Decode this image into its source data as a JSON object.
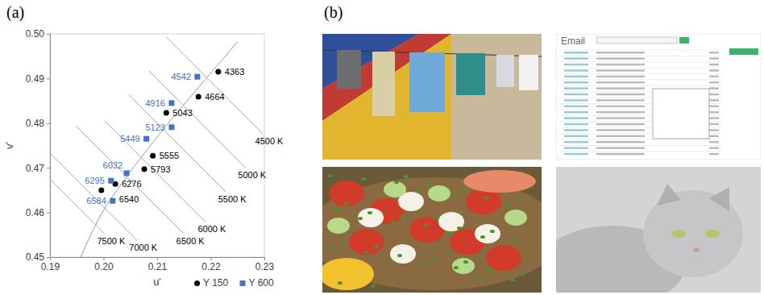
{
  "panel_labels": [
    "(a)",
    "(b)"
  ],
  "chart_data": {
    "type": "scatter",
    "x_label": "u'",
    "y_label": "v'",
    "xlim": [
      0.19,
      0.23
    ],
    "xticks": [
      0.19,
      {
        "value": 0.2,
        "label": "0.20"
      },
      0.21,
      0.22,
      0.23
    ],
    "ylim": [
      0.45,
      0.5
    ],
    "yticks": [
      0.45,
      0.46,
      0.47,
      0.48,
      0.49,
      {
        "value": 0.5,
        "label": "0.50"
      }
    ],
    "grid": false,
    "legend": "bottom-right",
    "series": [
      {
        "name": "Y 150",
        "color": "#000000",
        "marker": "circle",
        "x": [
          0.2214,
          0.2177,
          0.2117,
          0.2092,
          0.2076,
          0.2022,
          0.1996
        ],
        "values": [
          0.4915,
          0.4859,
          0.4823,
          0.4727,
          0.4697,
          0.4664,
          0.465
        ],
        "labels": [
          4363,
          4664,
          5043,
          5555,
          5793,
          6276,
          6540
        ]
      },
      {
        "name": "Y 600",
        "color": "#4472c4",
        "marker": "square",
        "x": [
          0.2175,
          0.2127,
          0.2127,
          0.208,
          0.2043,
          0.2014,
          0.2017
        ],
        "values": [
          0.4904,
          0.4845,
          0.4791,
          0.4765,
          0.4688,
          0.4671,
          0.4626
        ],
        "labels": [
          4542,
          4916,
          5123,
          5449,
          6032,
          6295,
          6584
        ]
      }
    ],
    "isotherms": [
      {
        "label": "4500 K",
        "x": [
          0.2117,
          0.2297
        ],
        "y": [
          0.4993,
          0.4776
        ]
      },
      {
        "label": "5000 K",
        "x": [
          0.2085,
          0.2265
        ],
        "y": [
          0.4917,
          0.47
        ]
      },
      {
        "label": "5500 K",
        "x": [
          0.2047,
          0.2228
        ],
        "y": [
          0.4863,
          0.4646
        ]
      },
      {
        "label": "6000 K",
        "x": [
          0.2002,
          0.219
        ],
        "y": [
          0.4805,
          0.4579
        ]
      },
      {
        "label": "6500 K",
        "x": [
          0.195,
          0.215
        ],
        "y": [
          0.4792,
          0.4552
        ]
      },
      {
        "label": "7000 K",
        "x": [
          0.19,
          0.2062
        ],
        "y": [
          0.4733,
          0.4538
        ]
      },
      {
        "label": "7500 K",
        "x": [
          0.19,
          0.2002
        ],
        "y": [
          0.4675,
          0.4552
        ]
      }
    ],
    "locus": {
      "x": [
        0.1957,
        0.1999,
        0.2029,
        0.2065,
        0.2112,
        0.2165,
        0.222,
        0.225
      ],
      "y": [
        0.45,
        0.4603,
        0.4657,
        0.4715,
        0.4787,
        0.4863,
        0.494,
        0.4982
      ]
    }
  },
  "photos": {
    "email_title": "Email"
  }
}
